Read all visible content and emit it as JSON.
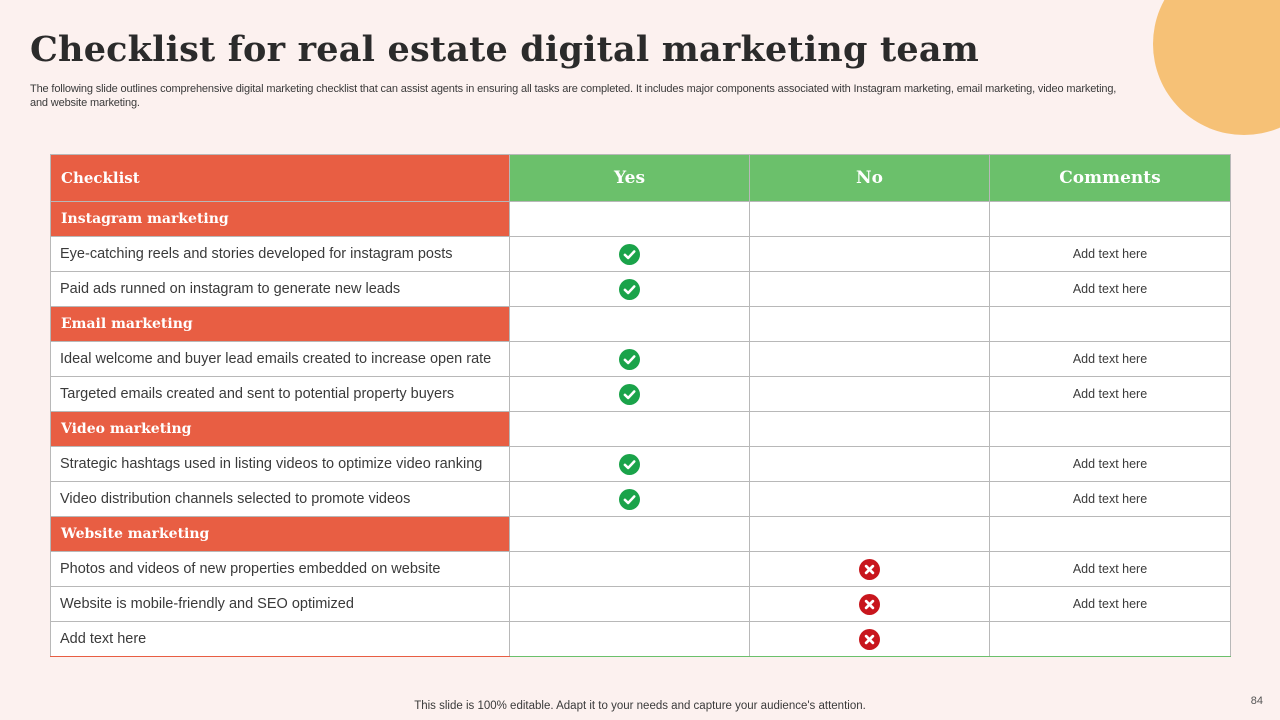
{
  "title": "Checklist for real estate digital marketing team",
  "subtitle": "The following slide outlines comprehensive digital marketing checklist that can assist agents in ensuring all tasks are completed. It includes major components associated with Instagram marketing, email marketing, video marketing, and website marketing.",
  "table": {
    "headers": [
      "Checklist",
      "Yes",
      "No",
      "Comments"
    ],
    "rows": [
      {
        "type": "section",
        "label": "Instagram marketing"
      },
      {
        "type": "item",
        "label": "Eye-catching reels and stories developed for instagram posts",
        "status": "yes",
        "comment": "Add text here"
      },
      {
        "type": "item",
        "label": "Paid ads runned on instagram to generate new leads",
        "status": "yes",
        "comment": "Add text here"
      },
      {
        "type": "section",
        "label": "Email marketing"
      },
      {
        "type": "item",
        "label": "Ideal welcome and buyer lead emails created to increase open rate",
        "status": "yes",
        "comment": "Add text here"
      },
      {
        "type": "item",
        "label": "Targeted emails created and sent to potential property buyers",
        "status": "yes",
        "comment": "Add text here"
      },
      {
        "type": "section",
        "label": "Video marketing"
      },
      {
        "type": "item",
        "label": "Strategic hashtags used in listing videos to optimize video ranking",
        "status": "yes",
        "comment": "Add text here"
      },
      {
        "type": "item",
        "label": "Video distribution channels selected to promote videos",
        "status": "yes",
        "comment": "Add text here"
      },
      {
        "type": "section",
        "label": "Website marketing"
      },
      {
        "type": "item",
        "label": "Photos and videos of new properties embedded on website",
        "status": "no",
        "comment": "Add text here"
      },
      {
        "type": "item",
        "label": "Website is mobile-friendly and SEO optimized",
        "status": "no",
        "comment": "Add text here"
      },
      {
        "type": "item",
        "label": "Add text here",
        "status": "no",
        "comment": ""
      }
    ]
  },
  "icons": {
    "yes": "check-circle-icon",
    "no": "x-circle-icon"
  },
  "colors": {
    "section": "#e85e43",
    "header_green": "#6bc06b",
    "check": "#1aa34a",
    "cross": "#c8161d",
    "accent_circle": "#f6c176"
  },
  "footer": "This slide is 100% editable. Adapt it to your needs and capture your audience's attention.",
  "page_number": "84"
}
